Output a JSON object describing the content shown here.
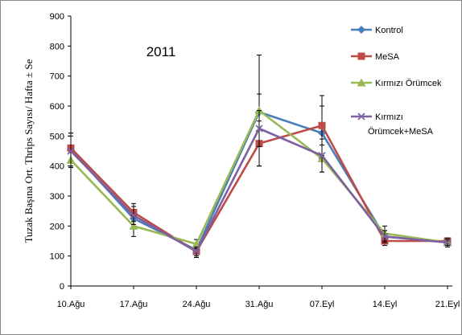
{
  "chart_data": {
    "type": "line",
    "annotation": "2011",
    "xlabel": "",
    "ylabel": "Tuzak Başına Ort. Thrips Sayısı/ Hafta ± Se",
    "categories": [
      "10.Ağu",
      "17.Ağu",
      "24.Ağu",
      "31.Ağu",
      "07.Eyl",
      "14.Eyl",
      "21.Eyl"
    ],
    "ylim": [
      0,
      900
    ],
    "yticks": [
      0,
      100,
      200,
      300,
      400,
      500,
      600,
      700,
      800,
      900
    ],
    "grid": false,
    "legend_position": "top-right",
    "series": [
      {
        "name": "Kontrol",
        "color": "#4a7ebb",
        "marker": "diamond",
        "values": [
          455,
          225,
          120,
          580,
          510,
          165,
          145
        ],
        "errors": [
          55,
          30,
          15,
          60,
          90,
          20,
          10
        ]
      },
      {
        "name": "MeSA",
        "color": "#be4b48",
        "marker": "square",
        "values": [
          460,
          245,
          115,
          475,
          535,
          150,
          150
        ],
        "errors": [
          50,
          30,
          20,
          75,
          100,
          15,
          10
        ]
      },
      {
        "name": "Kırmızı Örümcek",
        "color": "#98b954",
        "marker": "triangle",
        "values": [
          420,
          200,
          140,
          585,
          425,
          175,
          145
        ],
        "errors": [
          25,
          35,
          15,
          185,
          45,
          25,
          15
        ]
      },
      {
        "name": "Kırmızı\nÖrümcek+MeSA",
        "color": "#7d60a0",
        "marker": "x",
        "values": [
          450,
          235,
          115,
          525,
          435,
          165,
          145
        ],
        "errors": [
          50,
          30,
          15,
          60,
          55,
          20,
          10
        ]
      }
    ]
  }
}
